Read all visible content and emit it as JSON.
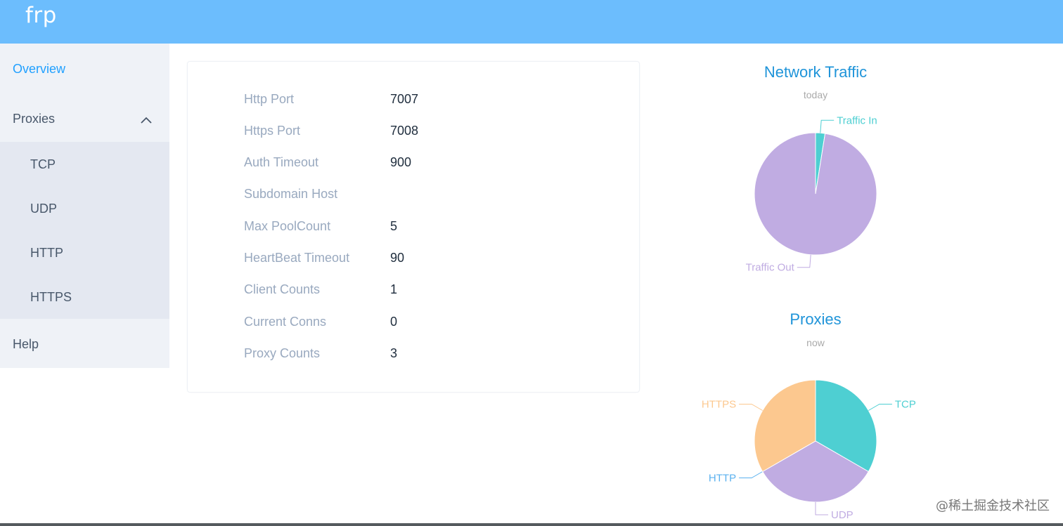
{
  "app": {
    "brand": "frp"
  },
  "sidebar": {
    "overview": "Overview",
    "proxies": "Proxies",
    "proxy_types": [
      "TCP",
      "UDP",
      "HTTP",
      "HTTPS"
    ],
    "help": "Help"
  },
  "server_info": [
    {
      "label": "Http Port",
      "value": "7007"
    },
    {
      "label": "Https Port",
      "value": "7008"
    },
    {
      "label": "Auth Timeout",
      "value": "900"
    },
    {
      "label": "Subdomain Host",
      "value": ""
    },
    {
      "label": "Max PoolCount",
      "value": "5"
    },
    {
      "label": "HeartBeat Timeout",
      "value": "90"
    },
    {
      "label": "Client Counts",
      "value": "1"
    },
    {
      "label": "Current Conns",
      "value": "0"
    },
    {
      "label": "Proxy Counts",
      "value": "3"
    }
  ],
  "watermark": "@稀土掘金技术社区",
  "chart_data": [
    {
      "type": "pie",
      "title": "Network Traffic",
      "subtitle": "today",
      "categories": [
        "Traffic In",
        "Traffic Out"
      ],
      "values": [
        2.5,
        97.5
      ],
      "colors": [
        "#4ecfd2",
        "#c0ace2"
      ]
    },
    {
      "type": "pie",
      "title": "Proxies",
      "subtitle": "now",
      "categories": [
        "TCP",
        "UDP",
        "HTTP",
        "HTTPS"
      ],
      "values": [
        1,
        1,
        0,
        1
      ],
      "colors": [
        "#4ecfd2",
        "#c0ace2",
        "#5ab1ef",
        "#fcc88f"
      ]
    }
  ]
}
